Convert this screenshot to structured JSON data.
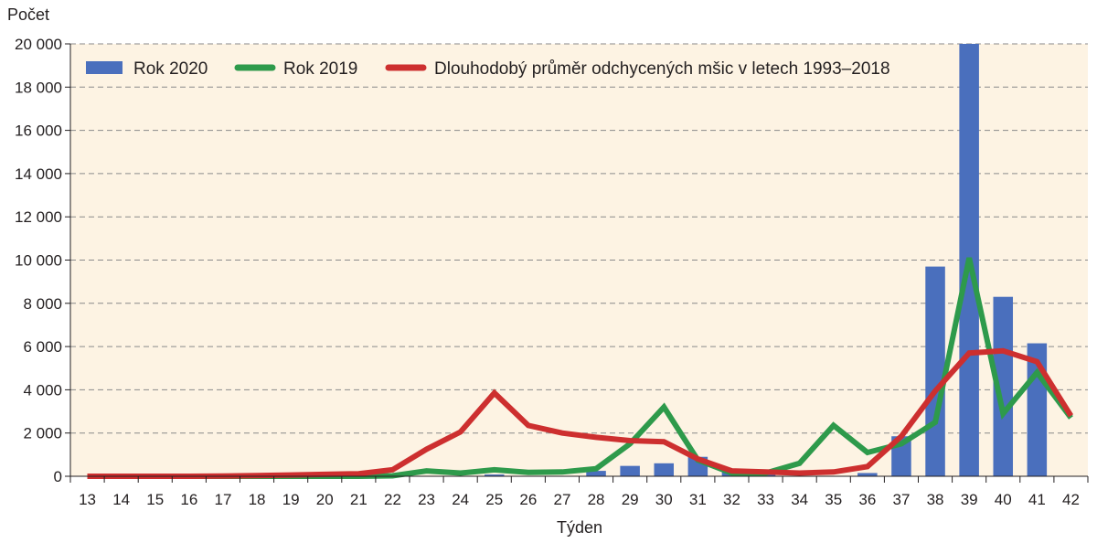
{
  "chart_data": {
    "type": "bar",
    "ylabel": "Počet",
    "xlabel": "Týden",
    "ylim": [
      0,
      20000
    ],
    "yticks": [
      0,
      2000,
      4000,
      6000,
      8000,
      10000,
      12000,
      14000,
      16000,
      18000,
      20000
    ],
    "ytick_labels": [
      "0",
      "2 000",
      "4 000",
      "6 000",
      "8 000",
      "10 000",
      "12 000",
      "14 000",
      "16 000",
      "18 000",
      "20 000"
    ],
    "categories": [
      "13",
      "14",
      "15",
      "16",
      "17",
      "18",
      "19",
      "20",
      "21",
      "22",
      "23",
      "24",
      "25",
      "26",
      "27",
      "28",
      "29",
      "30",
      "31",
      "32",
      "33",
      "34",
      "35",
      "36",
      "37",
      "38",
      "39",
      "40",
      "41",
      "42"
    ],
    "grid": "horizontal dashed",
    "legend_position": "top-left, inside plot",
    "background_color": "#fdf3e3",
    "series": [
      {
        "name": "Rok 2020",
        "kind": "bar",
        "color": "#4a6fbd",
        "values": [
          0,
          0,
          0,
          0,
          0,
          0,
          0,
          0,
          0,
          0,
          0,
          0,
          80,
          0,
          0,
          250,
          480,
          600,
          900,
          250,
          150,
          0,
          0,
          150,
          1850,
          9700,
          20000,
          8300,
          6150,
          0
        ]
      },
      {
        "name": "Rok 2019",
        "kind": "line",
        "color": "#2e9a4b",
        "values": [
          0,
          0,
          0,
          0,
          0,
          0,
          0,
          0,
          0,
          20,
          250,
          150,
          300,
          180,
          200,
          350,
          1500,
          3200,
          750,
          150,
          150,
          600,
          2350,
          1100,
          1500,
          2500,
          10100,
          2900,
          4800,
          2700
        ]
      },
      {
        "name": "Dlouhodobý průměr odchycených mšic v letech 1993–2018",
        "kind": "line",
        "color": "#cd2f2f",
        "values": [
          0,
          0,
          0,
          0,
          10,
          30,
          60,
          90,
          120,
          300,
          1250,
          2050,
          3850,
          2350,
          2000,
          1800,
          1650,
          1600,
          800,
          250,
          200,
          150,
          200,
          450,
          1850,
          3950,
          5700,
          5800,
          5300,
          2800
        ]
      }
    ]
  }
}
